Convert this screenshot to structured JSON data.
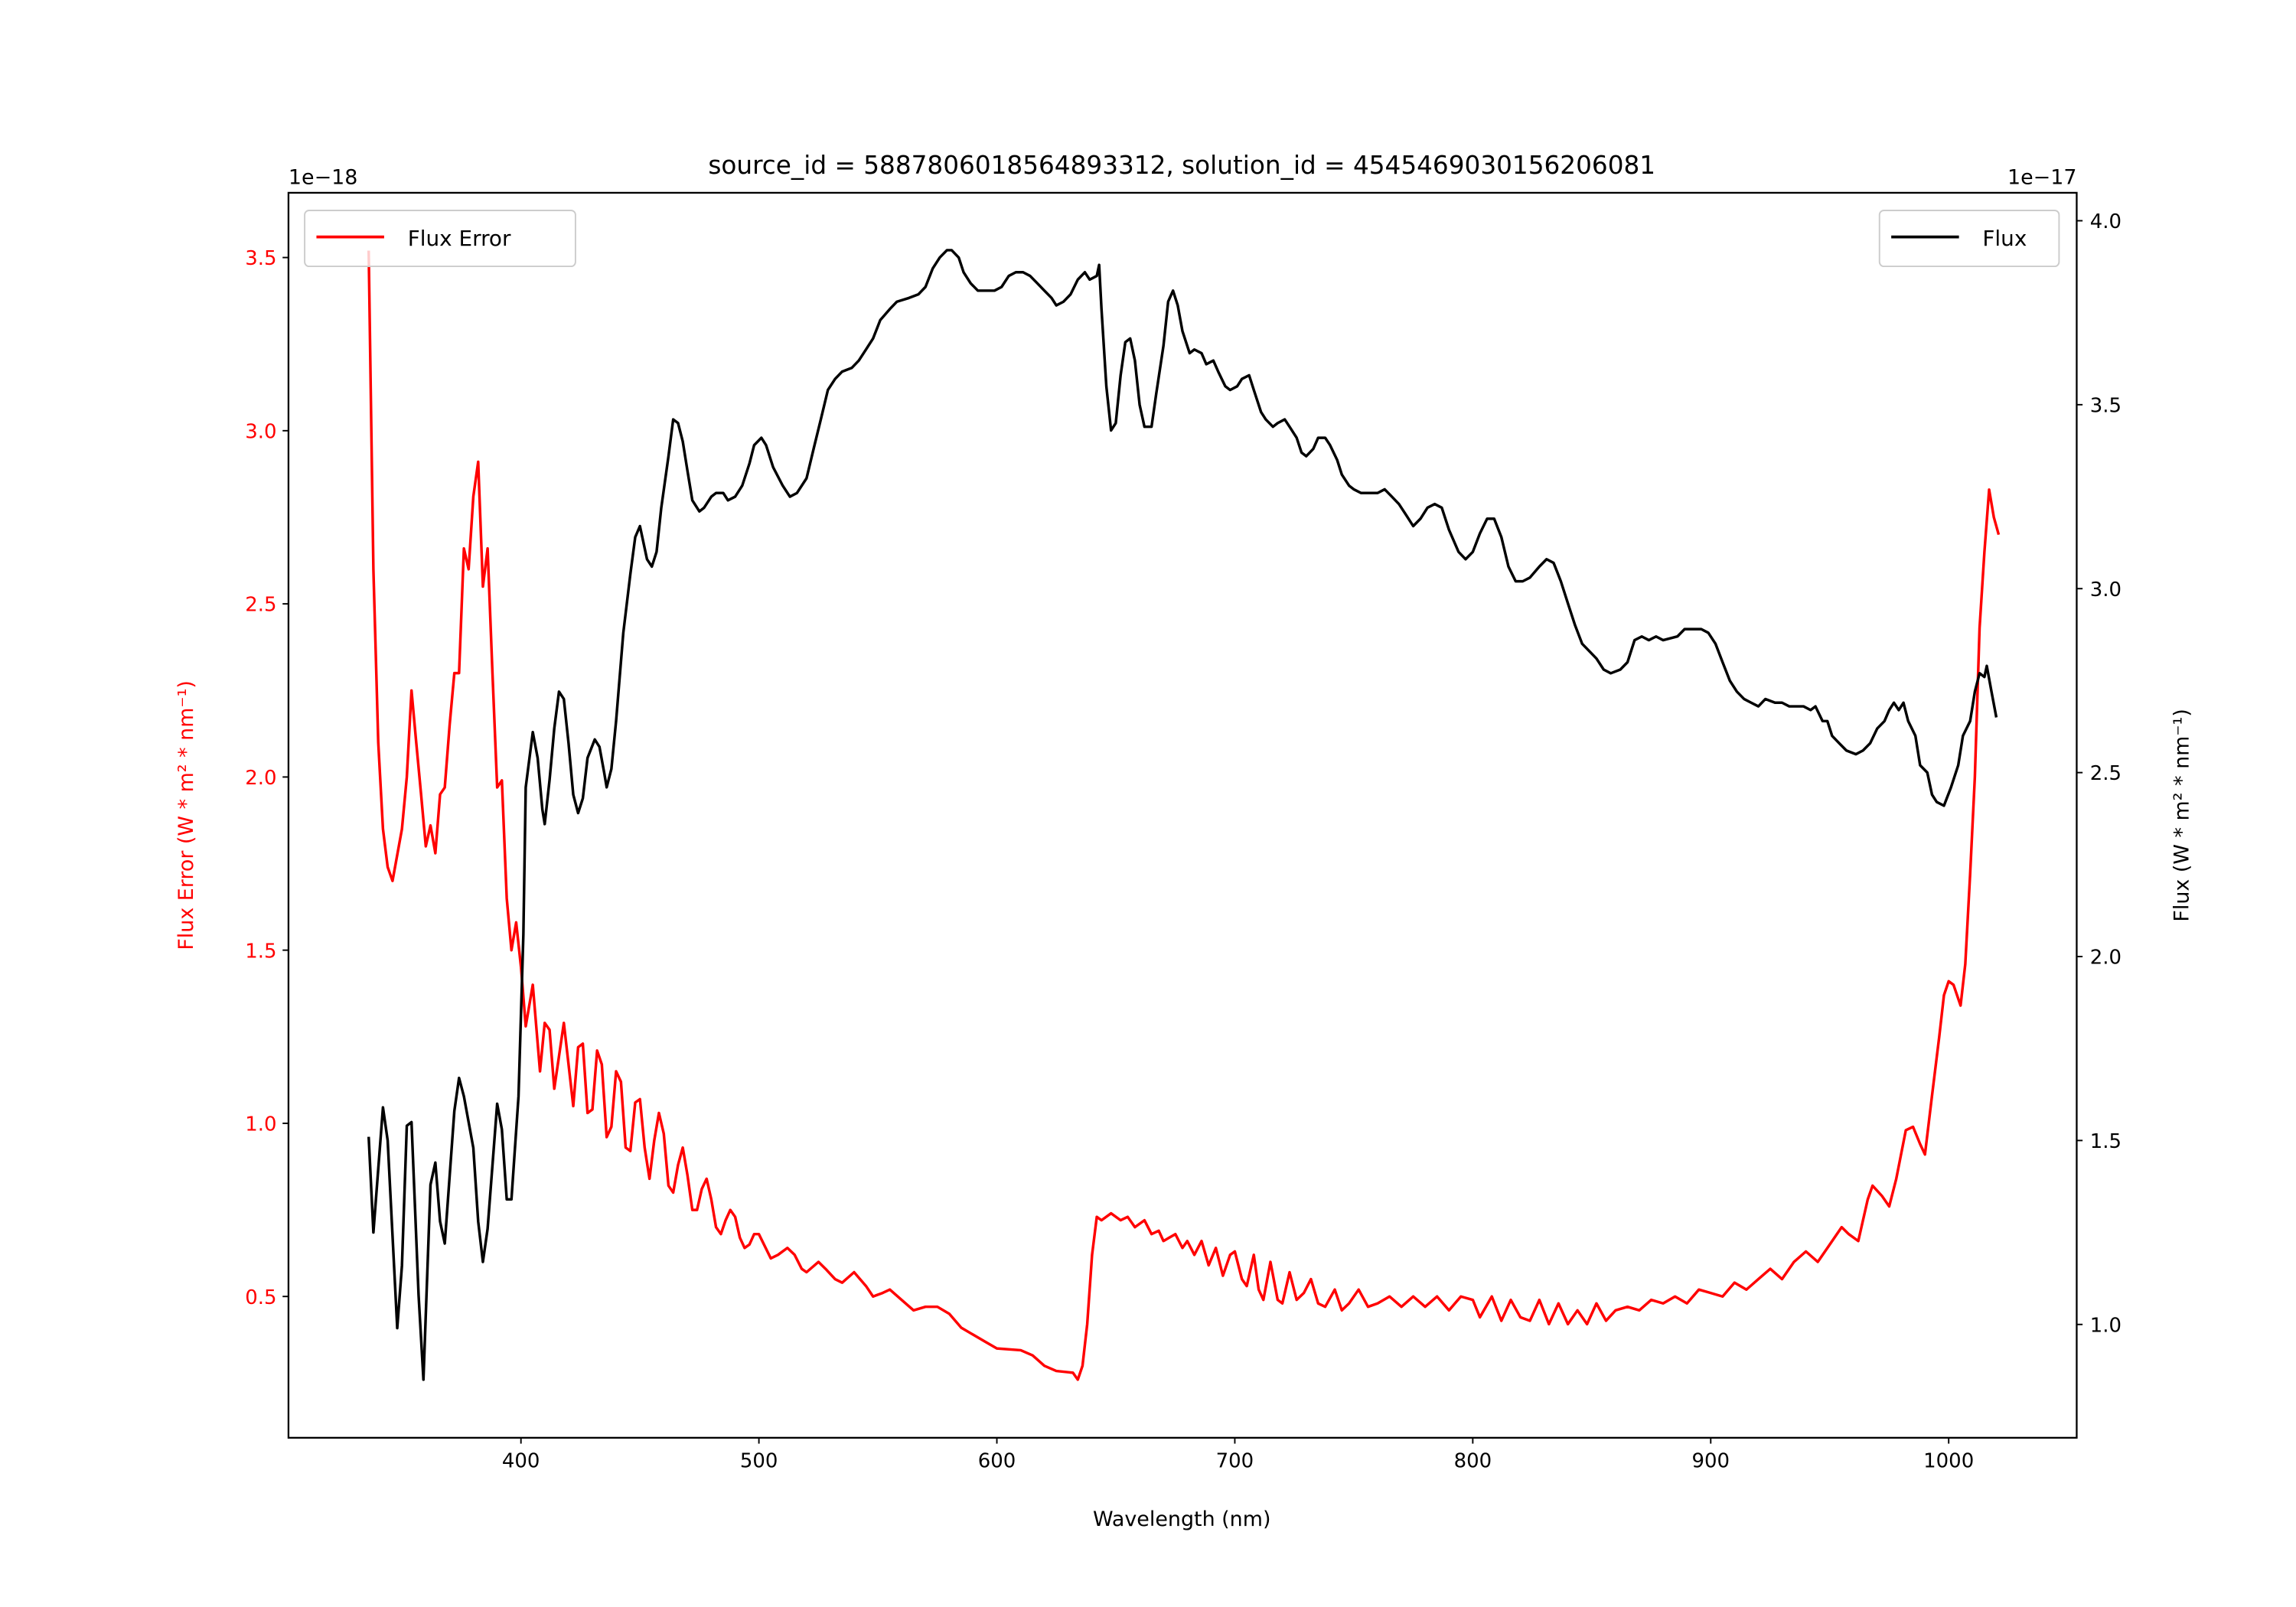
{
  "chart_data": {
    "type": "line",
    "title": "source_id = 5887806018564893312, solution_id = 4545469030156206081",
    "xlabel": "Wavelength (nm)",
    "ylabel_left": "Flux Error (W * m² * nm⁻¹)",
    "ylabel_right": "Flux (W * m² * nm⁻¹)",
    "offset_left": "1e−18",
    "offset_right": "1e−17",
    "xlim": [
      302.3,
      1053.8
    ],
    "ylim_left": [
      0.092,
      3.687
    ],
    "ylim_right": [
      0.692,
      4.076
    ],
    "xticks": [
      400,
      500,
      600,
      700,
      800,
      900,
      1000
    ],
    "yticks_left": [
      "0.5",
      "1.0",
      "1.5",
      "2.0",
      "2.5",
      "3.0",
      "3.5"
    ],
    "yticks_right": [
      "1.0",
      "1.5",
      "2.0",
      "2.5",
      "3.0",
      "3.5",
      "4.0"
    ],
    "grid": false,
    "colors": {
      "flux_error": "#ff0000",
      "flux": "#000000"
    },
    "series": [
      {
        "name": "Flux Error",
        "axis": "left",
        "legend": "top-left",
        "x": [
          336,
          338,
          340,
          342,
          344,
          346,
          350,
          352,
          354,
          356,
          358,
          360,
          362,
          364,
          366,
          368,
          370,
          372,
          374,
          376,
          378,
          380,
          382,
          384,
          386,
          388,
          390,
          392,
          394,
          396,
          398,
          400,
          402,
          405,
          408,
          410,
          412,
          414,
          418,
          422,
          424,
          426,
          428,
          430,
          432,
          434,
          436,
          438,
          440,
          442,
          444,
          446,
          448,
          450,
          452,
          454,
          456,
          458,
          460,
          462,
          464,
          466,
          468,
          470,
          472,
          474,
          476,
          478,
          480,
          482,
          484,
          486,
          488,
          490,
          492,
          494,
          496,
          498,
          500,
          505,
          508,
          512,
          515,
          518,
          520,
          525,
          528,
          532,
          535,
          540,
          545,
          548,
          552,
          555,
          560,
          565,
          570,
          575,
          580,
          585,
          590,
          595,
          600,
          610,
          615,
          620,
          625,
          632,
          634,
          636,
          638,
          640,
          642,
          644,
          648,
          652,
          655,
          658,
          662,
          665,
          668,
          670,
          675,
          678,
          680,
          683,
          686,
          689,
          692,
          695,
          698,
          700,
          703,
          705,
          708,
          710,
          712,
          715,
          718,
          720,
          723,
          726,
          729,
          732,
          735,
          738,
          742,
          745,
          748,
          752,
          756,
          760,
          765,
          770,
          775,
          780,
          785,
          790,
          795,
          800,
          803,
          808,
          812,
          816,
          820,
          824,
          828,
          832,
          836,
          840,
          844,
          848,
          852,
          856,
          860,
          865,
          870,
          875,
          880,
          885,
          890,
          895,
          900,
          905,
          910,
          915,
          920,
          925,
          930,
          935,
          940,
          945,
          950,
          955,
          958,
          962,
          966,
          968,
          972,
          975,
          978,
          982,
          985,
          988,
          990,
          993,
          996,
          998,
          1000,
          1002,
          1005,
          1007,
          1009,
          1011,
          1013,
          1015,
          1017,
          1019,
          1021
        ],
        "y": [
          3.52,
          2.6,
          2.1,
          1.85,
          1.74,
          1.7,
          1.85,
          2.0,
          2.25,
          2.1,
          1.95,
          1.8,
          1.86,
          1.78,
          1.95,
          1.97,
          2.15,
          2.3,
          2.3,
          2.66,
          2.6,
          2.81,
          2.91,
          2.55,
          2.66,
          2.3,
          1.97,
          1.99,
          1.65,
          1.5,
          1.58,
          1.45,
          1.28,
          1.4,
          1.15,
          1.29,
          1.27,
          1.1,
          1.29,
          1.05,
          1.22,
          1.23,
          1.03,
          1.04,
          1.21,
          1.17,
          0.96,
          0.99,
          1.15,
          1.12,
          0.93,
          0.92,
          1.06,
          1.07,
          0.93,
          0.84,
          0.95,
          1.03,
          0.97,
          0.82,
          0.8,
          0.88,
          0.93,
          0.85,
          0.75,
          0.75,
          0.81,
          0.84,
          0.78,
          0.7,
          0.68,
          0.72,
          0.75,
          0.73,
          0.67,
          0.64,
          0.65,
          0.68,
          0.68,
          0.61,
          0.62,
          0.64,
          0.62,
          0.58,
          0.57,
          0.6,
          0.58,
          0.55,
          0.54,
          0.57,
          0.53,
          0.5,
          0.51,
          0.52,
          0.49,
          0.46,
          0.47,
          0.47,
          0.45,
          0.41,
          0.39,
          0.37,
          0.35,
          0.345,
          0.33,
          0.3,
          0.285,
          0.28,
          0.26,
          0.3,
          0.42,
          0.62,
          0.73,
          0.72,
          0.74,
          0.72,
          0.73,
          0.7,
          0.72,
          0.68,
          0.69,
          0.66,
          0.68,
          0.64,
          0.66,
          0.62,
          0.66,
          0.59,
          0.64,
          0.56,
          0.62,
          0.63,
          0.55,
          0.53,
          0.62,
          0.52,
          0.49,
          0.6,
          0.49,
          0.48,
          0.57,
          0.49,
          0.51,
          0.55,
          0.48,
          0.47,
          0.52,
          0.46,
          0.48,
          0.52,
          0.47,
          0.48,
          0.5,
          0.47,
          0.5,
          0.47,
          0.5,
          0.46,
          0.5,
          0.49,
          0.44,
          0.5,
          0.43,
          0.49,
          0.44,
          0.43,
          0.49,
          0.42,
          0.48,
          0.42,
          0.46,
          0.42,
          0.48,
          0.43,
          0.46,
          0.47,
          0.46,
          0.49,
          0.48,
          0.5,
          0.48,
          0.52,
          0.51,
          0.5,
          0.54,
          0.52,
          0.55,
          0.58,
          0.55,
          0.6,
          0.63,
          0.6,
          0.65,
          0.7,
          0.68,
          0.66,
          0.78,
          0.82,
          0.79,
          0.76,
          0.84,
          0.98,
          0.99,
          0.94,
          0.91,
          1.08,
          1.25,
          1.37,
          1.41,
          1.4,
          1.34,
          1.46,
          1.72,
          2.0,
          2.43,
          2.65,
          2.83,
          2.75,
          2.7
        ]
      },
      {
        "name": "Flux",
        "axis": "right",
        "legend": "top-right",
        "x": [
          336,
          338,
          342,
          344,
          348,
          350,
          352,
          354,
          357,
          359,
          362,
          364,
          366,
          368,
          372,
          374,
          376,
          380,
          382,
          384,
          386,
          390,
          392,
          394,
          396,
          399,
          401,
          402,
          405,
          407,
          409,
          410,
          412,
          414,
          416,
          418,
          420,
          422,
          424,
          426,
          428,
          431,
          433,
          435,
          436,
          438,
          440,
          443,
          446,
          448,
          450,
          451,
          453,
          455,
          457,
          459,
          462,
          464,
          466,
          468,
          470,
          472,
          475,
          477,
          480,
          482,
          485,
          487,
          490,
          493,
          496,
          498,
          501,
          503,
          506,
          510,
          513,
          516,
          520,
          523,
          526,
          529,
          532,
          535,
          539,
          542,
          545,
          548,
          551,
          555,
          558,
          563,
          567,
          570,
          573,
          576,
          579,
          581,
          584,
          586,
          589,
          592,
          596,
          599,
          602,
          605,
          608,
          611,
          614,
          617,
          620,
          623,
          625,
          628,
          631,
          634,
          637,
          639,
          642,
          643,
          644,
          646,
          648,
          650,
          652,
          654,
          656,
          658,
          660,
          662,
          665,
          667,
          670,
          672,
          674,
          676,
          678,
          681,
          683,
          686,
          688,
          691,
          693,
          696,
          698,
          701,
          703,
          706,
          708,
          711,
          713,
          716,
          718,
          721,
          723,
          726,
          728,
          730,
          733,
          735,
          738,
          740,
          743,
          745,
          748,
          750,
          753,
          756,
          760,
          763,
          766,
          769,
          772,
          775,
          778,
          781,
          784,
          787,
          790,
          794,
          797,
          800,
          803,
          806,
          809,
          812,
          815,
          818,
          821,
          824,
          828,
          831,
          834,
          837,
          840,
          843,
          846,
          852,
          855,
          858,
          862,
          865,
          868,
          871,
          874,
          877,
          880,
          886,
          889,
          896,
          899,
          902,
          905,
          908,
          911,
          914,
          917,
          920,
          923,
          927,
          930,
          933,
          936,
          939,
          942,
          944,
          947,
          949,
          951,
          954,
          957,
          961,
          964,
          967,
          970,
          973,
          975,
          977,
          979,
          981,
          983,
          986,
          988,
          991,
          993,
          995,
          998,
          1001,
          1004,
          1006,
          1009,
          1011,
          1013,
          1015,
          1016,
          1018,
          1020
        ],
        "y": [
          1.51,
          1.25,
          1.59,
          1.5,
          0.99,
          1.16,
          1.54,
          1.55,
          1.08,
          0.85,
          1.38,
          1.44,
          1.28,
          1.22,
          1.58,
          1.67,
          1.62,
          1.48,
          1.28,
          1.17,
          1.26,
          1.6,
          1.53,
          1.34,
          1.34,
          1.62,
          2.06,
          2.46,
          2.61,
          2.54,
          2.4,
          2.36,
          2.48,
          2.62,
          2.72,
          2.7,
          2.58,
          2.44,
          2.39,
          2.43,
          2.54,
          2.59,
          2.57,
          2.5,
          2.46,
          2.51,
          2.64,
          2.88,
          3.04,
          3.14,
          3.17,
          3.14,
          3.08,
          3.06,
          3.1,
          3.22,
          3.36,
          3.46,
          3.45,
          3.4,
          3.32,
          3.24,
          3.21,
          3.22,
          3.25,
          3.26,
          3.26,
          3.24,
          3.25,
          3.28,
          3.34,
          3.39,
          3.41,
          3.39,
          3.33,
          3.28,
          3.25,
          3.26,
          3.3,
          3.38,
          3.46,
          3.54,
          3.57,
          3.59,
          3.6,
          3.62,
          3.65,
          3.68,
          3.73,
          3.76,
          3.78,
          3.79,
          3.8,
          3.82,
          3.87,
          3.9,
          3.92,
          3.92,
          3.9,
          3.86,
          3.83,
          3.81,
          3.81,
          3.81,
          3.82,
          3.85,
          3.86,
          3.86,
          3.85,
          3.83,
          3.81,
          3.79,
          3.77,
          3.78,
          3.8,
          3.84,
          3.86,
          3.84,
          3.85,
          3.88,
          3.76,
          3.55,
          3.43,
          3.45,
          3.58,
          3.67,
          3.68,
          3.62,
          3.5,
          3.44,
          3.44,
          3.53,
          3.66,
          3.78,
          3.81,
          3.77,
          3.7,
          3.64,
          3.65,
          3.64,
          3.61,
          3.62,
          3.59,
          3.55,
          3.54,
          3.55,
          3.57,
          3.58,
          3.54,
          3.48,
          3.46,
          3.44,
          3.45,
          3.46,
          3.44,
          3.41,
          3.37,
          3.36,
          3.38,
          3.41,
          3.41,
          3.39,
          3.35,
          3.31,
          3.28,
          3.27,
          3.26,
          3.26,
          3.26,
          3.27,
          3.25,
          3.23,
          3.2,
          3.17,
          3.19,
          3.22,
          3.23,
          3.22,
          3.16,
          3.1,
          3.08,
          3.1,
          3.15,
          3.19,
          3.19,
          3.14,
          3.06,
          3.02,
          3.02,
          3.03,
          3.06,
          3.08,
          3.07,
          3.02,
          2.96,
          2.9,
          2.85,
          2.81,
          2.78,
          2.77,
          2.78,
          2.8,
          2.86,
          2.87,
          2.86,
          2.87,
          2.86,
          2.87,
          2.89,
          2.89,
          2.88,
          2.85,
          2.8,
          2.75,
          2.72,
          2.7,
          2.69,
          2.68,
          2.7,
          2.69,
          2.69,
          2.68,
          2.68,
          2.68,
          2.67,
          2.68,
          2.64,
          2.64,
          2.6,
          2.58,
          2.56,
          2.55,
          2.56,
          2.58,
          2.62,
          2.64,
          2.67,
          2.69,
          2.67,
          2.69,
          2.64,
          2.6,
          2.52,
          2.5,
          2.44,
          2.42,
          2.41,
          2.46,
          2.52,
          2.6,
          2.64,
          2.72,
          2.77,
          2.76,
          2.79,
          2.72,
          2.65
        ]
      }
    ]
  }
}
